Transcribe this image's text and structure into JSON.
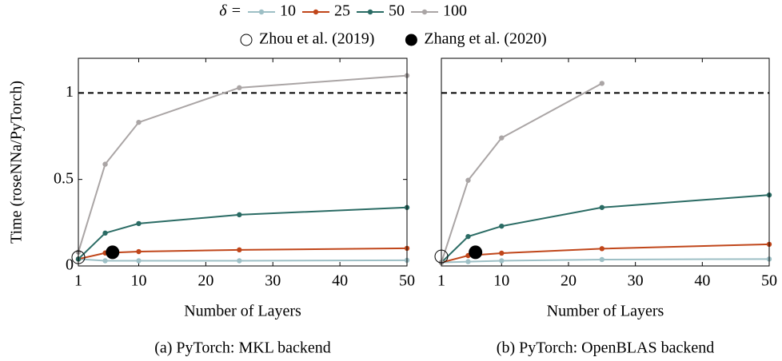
{
  "chart_data": [
    {
      "type": "line",
      "legend_title": "δ =",
      "ylabel": "Time (roseNNa/PyTorch)",
      "xlabel": "Number of Layers",
      "caption": "(a) PyTorch: MKL backend",
      "x": [
        1,
        5,
        10,
        25,
        50
      ],
      "xlim": [
        1,
        50
      ],
      "xticks": [
        1,
        10,
        20,
        30,
        40,
        50
      ],
      "ylim": [
        0,
        1.2
      ],
      "yticks": [
        0,
        0.5,
        1
      ],
      "hline": 1,
      "series": [
        {
          "name": "10",
          "color": "#9dbfc5",
          "values": [
            0.04,
            0.03,
            0.03,
            0.03,
            0.033
          ]
        },
        {
          "name": "25",
          "color": "#c0461a",
          "values": [
            0.04,
            0.075,
            0.083,
            0.093,
            0.102
          ]
        },
        {
          "name": "50",
          "color": "#2a6b64",
          "values": [
            0.04,
            0.19,
            0.245,
            0.296,
            0.338
          ]
        },
        {
          "name": "100",
          "color": "#aaa5a5",
          "values": [
            0.08,
            0.588,
            0.83,
            1.03,
            1.1
          ]
        }
      ],
      "points": [
        {
          "name": "Zhou et al. (2019)",
          "marker": "open",
          "x": 1,
          "y": 0.05
        },
        {
          "name": "Zhang et al. (2020)",
          "marker": "filled",
          "x": 6.1,
          "y": 0.079
        }
      ]
    },
    {
      "type": "line",
      "xlabel": "Number of Layers",
      "caption": "(b) PyTorch: OpenBLAS backend",
      "x": [
        1,
        5,
        10,
        25,
        50
      ],
      "xlim": [
        1,
        50
      ],
      "xticks": [
        1,
        10,
        20,
        30,
        40,
        50
      ],
      "ylim": [
        0,
        1.2
      ],
      "hline": 1,
      "series": [
        {
          "name": "10",
          "color": "#9dbfc5",
          "values": [
            0.02,
            0.025,
            0.03,
            0.037,
            0.04
          ]
        },
        {
          "name": "25",
          "color": "#c0461a",
          "values": [
            0.02,
            0.06,
            0.074,
            0.1,
            0.125
          ]
        },
        {
          "name": "50",
          "color": "#2a6b64",
          "values": [
            0.02,
            0.17,
            0.23,
            0.338,
            0.41
          ]
        },
        {
          "name": "100",
          "color": "#aaa5a5",
          "values": [
            0.02,
            0.495,
            0.74,
            1.055,
            null
          ]
        }
      ],
      "points": [
        {
          "name": "Zhou et al. (2019)",
          "marker": "open",
          "x": 1,
          "y": 0.055
        },
        {
          "name": "Zhang et al. (2020)",
          "marker": "filled",
          "x": 6.1,
          "y": 0.079
        }
      ]
    }
  ]
}
